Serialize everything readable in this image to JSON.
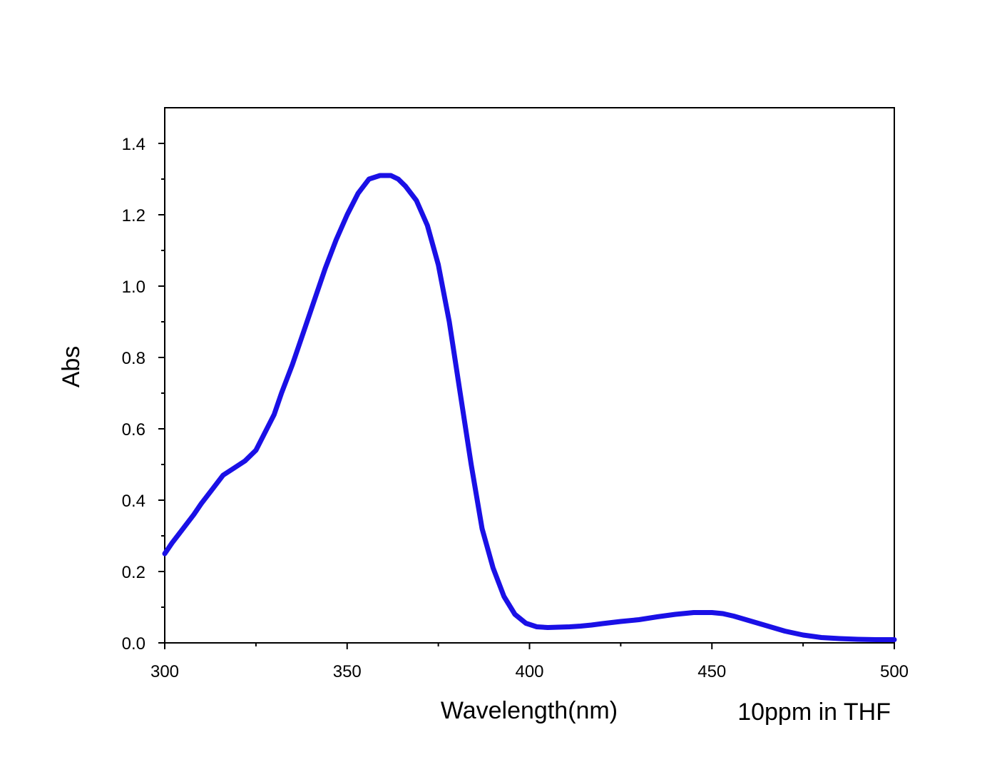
{
  "chart_data": {
    "type": "line",
    "title": "",
    "xlabel": "Wavelength(nm)",
    "ylabel": "Abs",
    "annotation": "10ppm in THF",
    "xlim": [
      300,
      500
    ],
    "ylim": [
      0,
      1.5
    ],
    "x_ticks": [
      300,
      350,
      400,
      450,
      500
    ],
    "x_tick_labels": [
      "300",
      "350",
      "400",
      "450",
      "500"
    ],
    "x_minor_ticks": [
      325,
      375,
      425,
      475
    ],
    "y_ticks": [
      0.0,
      0.2,
      0.4,
      0.6,
      0.8,
      1.0,
      1.2,
      1.4
    ],
    "y_tick_labels": [
      "0.0",
      "0.2",
      "0.4",
      "0.6",
      "0.8",
      "1.0",
      "1.2",
      "1.4"
    ],
    "y_minor_ticks": [
      0.1,
      0.3,
      0.5,
      0.7,
      0.9,
      1.1,
      1.3
    ],
    "grid": false,
    "series": [
      {
        "name": "10ppm in THF",
        "color": "#1a10e6",
        "x": [
          300,
          302,
          305,
          308,
          310,
          313,
          316,
          319,
          322,
          325,
          327,
          330,
          332,
          335,
          338,
          341,
          344,
          347,
          350,
          353,
          356,
          359,
          362,
          364,
          366,
          369,
          372,
          375,
          378,
          381,
          384,
          387,
          390,
          393,
          396,
          399,
          402,
          405,
          408,
          411,
          414,
          417,
          420,
          425,
          430,
          435,
          440,
          445,
          450,
          453,
          456,
          460,
          465,
          470,
          475,
          480,
          485,
          490,
          495,
          500
        ],
        "y": [
          0.25,
          0.28,
          0.32,
          0.36,
          0.39,
          0.43,
          0.47,
          0.49,
          0.51,
          0.54,
          0.58,
          0.64,
          0.7,
          0.78,
          0.87,
          0.96,
          1.05,
          1.13,
          1.2,
          1.26,
          1.3,
          1.31,
          1.31,
          1.3,
          1.28,
          1.24,
          1.17,
          1.06,
          0.9,
          0.7,
          0.5,
          0.32,
          0.21,
          0.13,
          0.08,
          0.055,
          0.045,
          0.043,
          0.044,
          0.045,
          0.047,
          0.05,
          0.054,
          0.06,
          0.065,
          0.073,
          0.08,
          0.085,
          0.085,
          0.082,
          0.075,
          0.063,
          0.048,
          0.033,
          0.022,
          0.015,
          0.012,
          0.01,
          0.009,
          0.009
        ]
      }
    ]
  }
}
